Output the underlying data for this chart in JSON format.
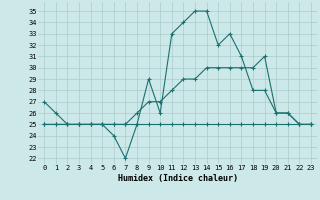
{
  "xlabel": "Humidex (Indice chaleur)",
  "background_color": "#cce8e8",
  "grid_color": "#aacccc",
  "line_color": "#1a7070",
  "x": [
    0,
    1,
    2,
    3,
    4,
    5,
    6,
    7,
    8,
    9,
    10,
    11,
    12,
    13,
    14,
    15,
    16,
    17,
    18,
    19,
    20,
    21,
    22,
    23
  ],
  "series1": [
    27,
    26,
    25,
    25,
    25,
    25,
    24,
    22,
    25,
    29,
    26,
    33,
    34,
    35,
    35,
    32,
    33,
    31,
    28,
    28,
    26,
    26,
    25,
    25
  ],
  "series2": [
    25,
    25,
    25,
    25,
    25,
    25,
    25,
    25,
    25,
    25,
    25,
    25,
    25,
    25,
    25,
    25,
    25,
    25,
    25,
    25,
    25,
    25,
    25,
    25
  ],
  "series3": [
    25,
    25,
    25,
    25,
    25,
    25,
    25,
    25,
    26,
    27,
    27,
    28,
    29,
    29,
    30,
    30,
    30,
    30,
    30,
    31,
    26,
    26,
    25,
    25
  ],
  "ylim": [
    21.5,
    35.8
  ],
  "xlim": [
    -0.5,
    23.5
  ],
  "yticks": [
    22,
    23,
    24,
    25,
    26,
    27,
    28,
    29,
    30,
    31,
    32,
    33,
    34,
    35
  ],
  "xticks": [
    0,
    1,
    2,
    3,
    4,
    5,
    6,
    7,
    8,
    9,
    10,
    11,
    12,
    13,
    14,
    15,
    16,
    17,
    18,
    19,
    20,
    21,
    22,
    23
  ]
}
